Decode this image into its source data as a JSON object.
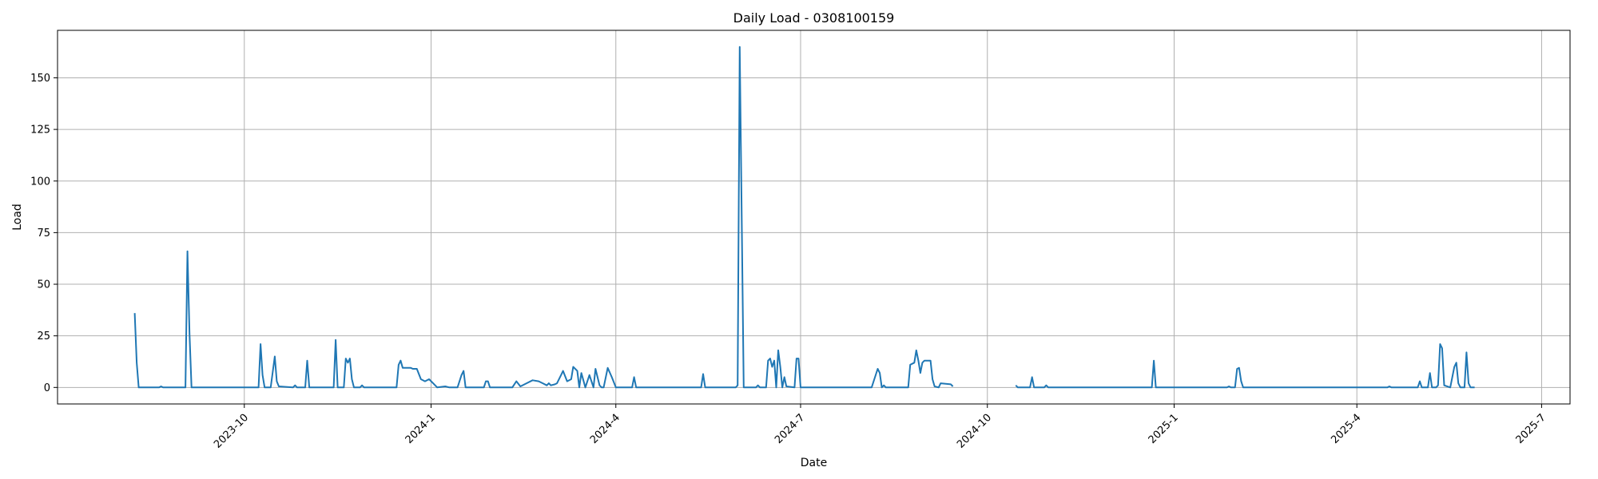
{
  "chart_data": {
    "type": "line",
    "title": "Daily Load - 0308100159",
    "xlabel": "Date",
    "ylabel": "Load",
    "grid": true,
    "line_color": "#1f77b4",
    "xlim": [
      "2023-07-01",
      "2025-07-15"
    ],
    "ylim": [
      -8,
      173
    ],
    "x_ticks": [
      "2023-10",
      "2024-1",
      "2024-4",
      "2024-7",
      "2024-10",
      "2025-1",
      "2025-4",
      "2025-7"
    ],
    "x_tick_dates": [
      "2023-10-01",
      "2024-01-01",
      "2024-04-01",
      "2024-07-01",
      "2024-10-01",
      "2025-01-01",
      "2025-04-01",
      "2025-07-01"
    ],
    "y_ticks": [
      0,
      25,
      50,
      75,
      100,
      125,
      150
    ],
    "series": [
      {
        "segments": [
          [
            [
              "2023-08-08",
              36
            ],
            [
              "2023-08-09",
              12
            ],
            [
              "2023-08-10",
              0
            ],
            [
              "2023-08-20",
              0
            ],
            [
              "2023-08-21",
              0.5
            ],
            [
              "2023-08-22",
              0
            ],
            [
              "2023-09-02",
              0
            ],
            [
              "2023-09-03",
              66
            ],
            [
              "2023-09-04",
              26
            ],
            [
              "2023-09-05",
              0
            ],
            [
              "2023-10-08",
              0
            ],
            [
              "2023-10-09",
              21
            ],
            [
              "2023-10-10",
              6
            ],
            [
              "2023-10-11",
              0
            ],
            [
              "2023-10-13",
              0
            ],
            [
              "2023-10-14",
              0
            ],
            [
              "2023-10-16",
              15
            ],
            [
              "2023-10-17",
              3
            ],
            [
              "2023-10-18",
              0.5
            ],
            [
              "2023-10-25",
              0
            ],
            [
              "2023-10-26",
              1
            ],
            [
              "2023-10-27",
              0
            ],
            [
              "2023-10-31",
              0
            ],
            [
              "2023-11-01",
              13
            ],
            [
              "2023-11-02",
              0
            ],
            [
              "2023-11-14",
              0
            ],
            [
              "2023-11-15",
              23
            ],
            [
              "2023-11-16",
              0
            ],
            [
              "2023-11-19",
              0
            ],
            [
              "2023-11-20",
              14
            ],
            [
              "2023-11-21",
              12
            ],
            [
              "2023-11-22",
              14
            ],
            [
              "2023-11-23",
              4
            ],
            [
              "2023-11-24",
              0
            ],
            [
              "2023-11-27",
              0
            ],
            [
              "2023-11-28",
              1
            ],
            [
              "2023-11-29",
              0
            ],
            [
              "2023-12-15",
              0
            ],
            [
              "2023-12-16",
              11
            ],
            [
              "2023-12-17",
              13
            ],
            [
              "2023-12-18",
              9.5
            ],
            [
              "2023-12-22",
              9.5
            ],
            [
              "2023-12-23",
              9
            ],
            [
              "2023-12-25",
              9
            ],
            [
              "2023-12-27",
              4
            ],
            [
              "2023-12-29",
              3
            ],
            [
              "2023-12-31",
              4
            ],
            [
              "2024-01-02",
              2
            ],
            [
              "2024-01-04",
              0
            ],
            [
              "2024-01-08",
              0.5
            ],
            [
              "2024-01-10",
              0
            ],
            [
              "2024-01-14",
              0
            ],
            [
              "2024-01-16",
              6
            ],
            [
              "2024-01-17",
              8
            ],
            [
              "2024-01-18",
              0
            ],
            [
              "2024-01-27",
              0
            ],
            [
              "2024-01-28",
              3
            ],
            [
              "2024-01-29",
              3
            ],
            [
              "2024-01-30",
              0
            ],
            [
              "2024-02-10",
              0
            ],
            [
              "2024-02-12",
              3
            ],
            [
              "2024-02-14",
              0.5
            ],
            [
              "2024-02-17",
              2
            ],
            [
              "2024-02-20",
              3.5
            ],
            [
              "2024-02-23",
              3
            ],
            [
              "2024-02-25",
              2
            ],
            [
              "2024-02-27",
              1
            ],
            [
              "2024-02-28",
              2
            ],
            [
              "2024-02-29",
              1
            ],
            [
              "2024-03-02",
              1.5
            ],
            [
              "2024-03-03",
              2
            ],
            [
              "2024-03-05",
              6
            ],
            [
              "2024-03-06",
              8
            ],
            [
              "2024-03-08",
              3
            ],
            [
              "2024-03-10",
              4
            ],
            [
              "2024-03-11",
              10
            ],
            [
              "2024-03-13",
              8
            ],
            [
              "2024-03-14",
              0
            ],
            [
              "2024-03-15",
              7
            ],
            [
              "2024-03-17",
              0
            ],
            [
              "2024-03-19",
              6
            ],
            [
              "2024-03-21",
              0
            ],
            [
              "2024-03-22",
              9
            ],
            [
              "2024-03-24",
              1
            ],
            [
              "2024-03-25",
              0
            ],
            [
              "2024-03-26",
              0
            ],
            [
              "2024-03-28",
              9.5
            ],
            [
              "2024-03-30",
              5
            ],
            [
              "2024-04-01",
              0
            ],
            [
              "2024-04-09",
              0
            ],
            [
              "2024-04-10",
              5
            ],
            [
              "2024-04-11",
              0
            ],
            [
              "2024-05-13",
              0
            ],
            [
              "2024-05-14",
              6.5
            ],
            [
              "2024-05-15",
              0
            ],
            [
              "2024-05-30",
              0
            ],
            [
              "2024-05-31",
              1
            ],
            [
              "2024-06-01",
              165
            ],
            [
              "2024-06-03",
              0
            ],
            [
              "2024-06-09",
              0
            ],
            [
              "2024-06-10",
              1
            ],
            [
              "2024-06-11",
              0
            ],
            [
              "2024-06-14",
              0
            ],
            [
              "2024-06-15",
              13
            ],
            [
              "2024-06-16",
              14
            ],
            [
              "2024-06-17",
              10
            ],
            [
              "2024-06-18",
              13
            ],
            [
              "2024-06-19",
              0
            ],
            [
              "2024-06-20",
              18
            ],
            [
              "2024-06-21",
              10
            ],
            [
              "2024-06-22",
              0
            ],
            [
              "2024-06-23",
              5
            ],
            [
              "2024-06-24",
              0.5
            ],
            [
              "2024-06-28",
              0
            ],
            [
              "2024-06-29",
              14
            ],
            [
              "2024-06-30",
              14
            ],
            [
              "2024-07-01",
              0
            ],
            [
              "2024-08-05",
              0
            ],
            [
              "2024-08-08",
              9
            ],
            [
              "2024-08-09",
              7
            ],
            [
              "2024-08-10",
              0
            ],
            [
              "2024-08-11",
              1
            ],
            [
              "2024-08-12",
              0
            ],
            [
              "2024-08-23",
              0
            ],
            [
              "2024-08-24",
              11
            ],
            [
              "2024-08-26",
              12
            ],
            [
              "2024-08-27",
              18
            ],
            [
              "2024-08-28",
              13
            ],
            [
              "2024-08-29",
              7
            ],
            [
              "2024-08-30",
              12
            ],
            [
              "2024-08-31",
              13
            ],
            [
              "2024-09-03",
              13
            ],
            [
              "2024-09-04",
              4
            ],
            [
              "2024-09-05",
              0.5
            ],
            [
              "2024-09-07",
              0
            ],
            [
              "2024-09-08",
              2
            ],
            [
              "2024-09-13",
              1.5
            ],
            [
              "2024-09-14",
              0.5
            ]
          ],
          [
            [
              "2024-10-15",
              1
            ],
            [
              "2024-10-16",
              0
            ],
            [
              "2024-10-22",
              0
            ],
            [
              "2024-10-23",
              5
            ],
            [
              "2024-10-24",
              0
            ],
            [
              "2024-10-29",
              0
            ],
            [
              "2024-10-30",
              1
            ],
            [
              "2024-10-31",
              0
            ],
            [
              "2024-12-21",
              0
            ],
            [
              "2024-12-22",
              13
            ],
            [
              "2024-12-23",
              0
            ],
            [
              "2025-01-27",
              0
            ],
            [
              "2025-01-28",
              0.5
            ],
            [
              "2025-01-29",
              0
            ],
            [
              "2025-01-31",
              0
            ],
            [
              "2025-02-01",
              9
            ],
            [
              "2025-02-02",
              9.5
            ],
            [
              "2025-02-03",
              3
            ],
            [
              "2025-02-04",
              0
            ],
            [
              "2025-04-16",
              0
            ],
            [
              "2025-04-17",
              0.5
            ],
            [
              "2025-04-18",
              0
            ],
            [
              "2025-05-01",
              0
            ],
            [
              "2025-05-02",
              3
            ],
            [
              "2025-05-03",
              0
            ],
            [
              "2025-05-06",
              0
            ],
            [
              "2025-05-07",
              7
            ],
            [
              "2025-05-08",
              0
            ],
            [
              "2025-05-10",
              0
            ],
            [
              "2025-05-11",
              1
            ],
            [
              "2025-05-12",
              21
            ],
            [
              "2025-05-13",
              19
            ],
            [
              "2025-05-14",
              1
            ],
            [
              "2025-05-17",
              0
            ],
            [
              "2025-05-19",
              10
            ],
            [
              "2025-05-20",
              12
            ],
            [
              "2025-05-21",
              2
            ],
            [
              "2025-05-22",
              0
            ],
            [
              "2025-05-24",
              0
            ],
            [
              "2025-05-25",
              17
            ],
            [
              "2025-05-26",
              2
            ],
            [
              "2025-05-27",
              0
            ],
            [
              "2025-05-29",
              0
            ]
          ]
        ]
      }
    ]
  }
}
